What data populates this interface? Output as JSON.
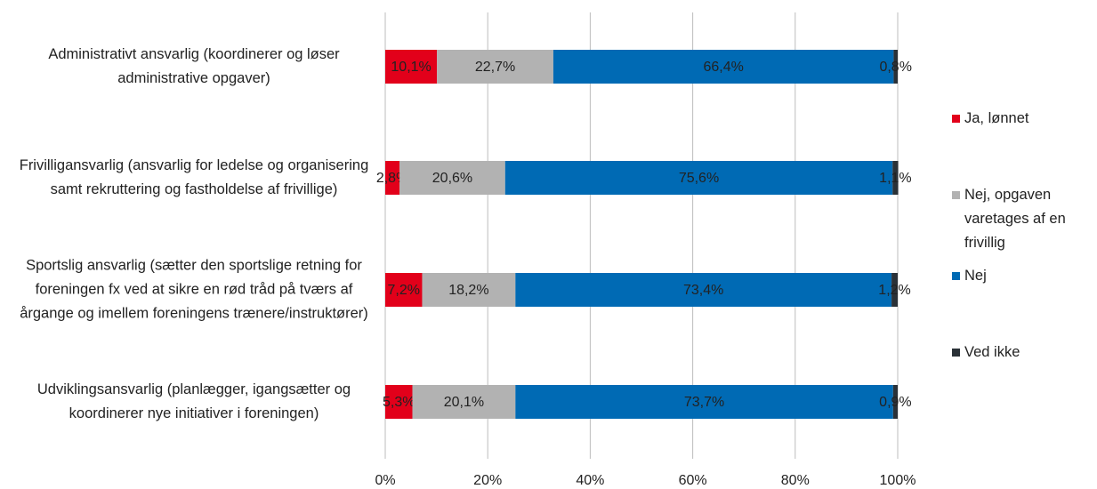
{
  "chart_data": {
    "type": "stacked_barh",
    "categories": [
      "Administrativt ansvarlig (koordinerer og løser administrative opgaver)",
      "Frivilligansvarlig (ansvarlig for ledelse og organisering samt rekruttering og fastholdelse af frivillige)",
      "Sportslig ansvarlig (sætter den sportslige retning for foreningen fx ved at sikre en rød tråd på tværs af årgange og imellem foreningens trænere/instruktører)",
      "Udviklingsansvarlig (planlægger, igangsætter og koordinerer nye initiativer i foreningen)"
    ],
    "series": [
      {
        "name": "Ja, lønnet",
        "color": "#e2001a",
        "values": [
          10.1,
          2.8,
          7.2,
          5.3
        ],
        "value_labels": [
          "10,1%",
          "2,8%",
          "7,2%",
          "5,3%"
        ]
      },
      {
        "name": "Nej, opgaven varetages af en frivillig",
        "color": "#b2b2b2",
        "values": [
          22.7,
          20.6,
          18.2,
          20.1
        ],
        "value_labels": [
          "22,7%",
          "20,6%",
          "18,2%",
          "20,1%"
        ]
      },
      {
        "name": "Nej",
        "color": "#006ab4",
        "values": [
          66.4,
          75.6,
          73.4,
          73.7
        ],
        "value_labels": [
          "66,4%",
          "75,6%",
          "73,4%",
          "73,7%"
        ]
      },
      {
        "name": "Ved ikke",
        "color": "#2a3137",
        "values": [
          0.8,
          1.1,
          1.2,
          0.9
        ],
        "value_labels": [
          "0,8%",
          "1,1%",
          "1,2%",
          "0,9%"
        ]
      }
    ],
    "xlim": [
      0,
      100
    ],
    "xticks": [
      {
        "value": 0,
        "label": "0%"
      },
      {
        "value": 20,
        "label": "20%"
      },
      {
        "value": 40,
        "label": "40%"
      },
      {
        "value": 60,
        "label": "60%"
      },
      {
        "value": 80,
        "label": "80%"
      },
      {
        "value": 100,
        "label": "100%"
      }
    ],
    "grid": true,
    "legend": "right"
  }
}
